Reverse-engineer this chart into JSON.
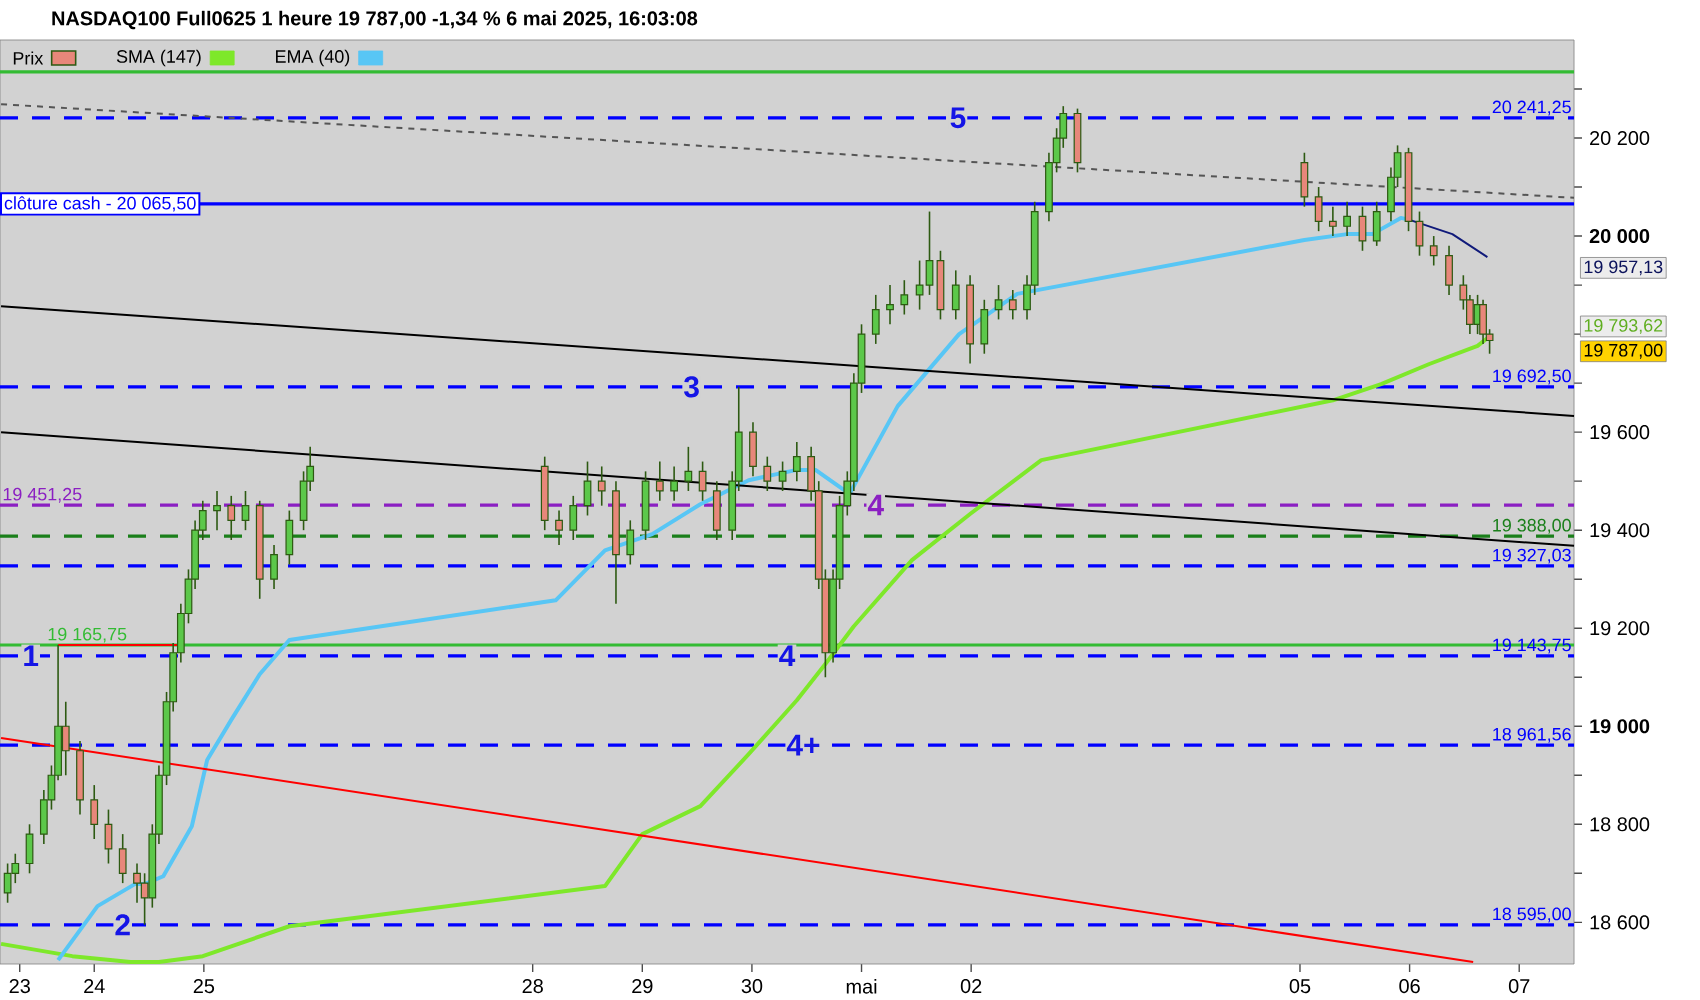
{
  "chart_data": {
    "type": "candlestick",
    "title": "NASDAQ100 Full0625 1 heure 19 787,00 -1,34 % 6 mai 2025, 16:03:08",
    "xlim": [
      "2025-04-23T03:22",
      "2025-05-07T12:00"
    ],
    "ylim": [
      18515,
      20400
    ],
    "xticks": [
      {
        "value": "2025-04-23T07:41",
        "label": "23"
      },
      {
        "value": "2025-04-24",
        "label": "24"
      },
      {
        "value": "2025-04-25",
        "label": "25"
      },
      {
        "value": "2025-04-28",
        "label": "28"
      },
      {
        "value": "2025-04-29",
        "label": "29"
      },
      {
        "value": "2025-04-30",
        "label": "30"
      },
      {
        "value": "2025-05-01",
        "label": "mai"
      },
      {
        "value": "2025-05-02",
        "label": "02"
      },
      {
        "value": "2025-05-05",
        "label": "05"
      },
      {
        "value": "2025-05-06",
        "label": "06"
      },
      {
        "value": "2025-05-07",
        "label": "07"
      }
    ],
    "yticks": [
      {
        "value": 18600,
        "label": "18 600"
      },
      {
        "value": 18700,
        "label": null
      },
      {
        "value": 18800,
        "label": "18 800"
      },
      {
        "value": 18900,
        "label": null
      },
      {
        "value": 19000,
        "label": "19 000"
      },
      {
        "value": 19100,
        "label": null
      },
      {
        "value": 19200,
        "label": "19 200"
      },
      {
        "value": 19300,
        "label": null
      },
      {
        "value": 19400,
        "label": "19 400"
      },
      {
        "value": 19500,
        "label": null
      },
      {
        "value": 19600,
        "label": "19 600"
      },
      {
        "value": 19700,
        "label": null
      },
      {
        "value": 19800,
        "label": null
      },
      {
        "value": 19900,
        "label": null
      },
      {
        "value": 20000,
        "label": "20 000"
      },
      {
        "value": 20100,
        "label": null
      },
      {
        "value": 20200,
        "label": "20 200"
      },
      {
        "value": 20300,
        "label": null
      }
    ],
    "legend": "top left",
    "grid": false,
    "marker": "none",
    "series": [
      {
        "name": "Prix",
        "color": "#2d5a12",
        "x": [
          "2025-04-23T05:02",
          "2025-04-23T06:43",
          "2025-04-23T09:50",
          "2025-04-23T12:58",
          "2025-04-23T14:38",
          "2025-04-23T16:05",
          "2025-04-23T17:46",
          "2025-04-23T20:53",
          "2025-04-24T00:00",
          "2025-04-24T03:07",
          "2025-04-24T06:14",
          "2025-04-24T09:22",
          "2025-04-24T11:02",
          "2025-04-24T12:43",
          "2025-04-24T14:10",
          "2025-04-24T15:50",
          "2025-04-24T17:17",
          "2025-04-24T18:58",
          "2025-04-24T20:38",
          "2025-04-24T22:05",
          "2025-04-24T23:46",
          "2025-04-25T02:53",
          "2025-04-25T06:00",
          "2025-04-25T09:07",
          "2025-04-25T12:14",
          "2025-04-25T15:22",
          "2025-04-25T18:43",
          "2025-04-25T21:50",
          "2025-04-25T23:17",
          "2025-04-28T02:38",
          "2025-04-28T05:46",
          "2025-04-28T08:53",
          "2025-04-28T12:00",
          "2025-04-28T15:07",
          "2025-04-28T18:14",
          "2025-04-28T21:22",
          "2025-04-29T00:43",
          "2025-04-29T03:50",
          "2025-04-29T06:58",
          "2025-04-29T10:05",
          "2025-04-29T13:12",
          "2025-04-29T16:19",
          "2025-04-29T19:41",
          "2025-04-29T21:07",
          "2025-04-30T00:14",
          "2025-04-30T03:22",
          "2025-04-30T06:43",
          "2025-04-30T09:50",
          "2025-04-30T12:58",
          "2025-04-30T14:38",
          "2025-04-30T16:05",
          "2025-04-30T17:46",
          "2025-04-30T19:12",
          "2025-04-30T20:53",
          "2025-04-30T22:19",
          "2025-05-01T00:00",
          "2025-05-01T03:07",
          "2025-05-01T06:14",
          "2025-05-01T09:22",
          "2025-05-01T12:43",
          "2025-05-01T14:53",
          "2025-05-01T17:17",
          "2025-05-01T20:38",
          "2025-05-01T23:46",
          "2025-05-02T02:53",
          "2025-05-02T06:00",
          "2025-05-02T09:07",
          "2025-05-02T12:14",
          "2025-05-02T13:55",
          "2025-05-02T17:02",
          "2025-05-02T18:43",
          "2025-05-02T20:10",
          "2025-05-02T23:17",
          "2025-05-05T00:58",
          "2025-05-05T04:05",
          "2025-05-05T07:12",
          "2025-05-05T10:19",
          "2025-05-05T13:41",
          "2025-05-05T16:48",
          "2025-05-05T19:55",
          "2025-05-05T21:22",
          "2025-05-05T23:46",
          "2025-05-06T02:10",
          "2025-05-06T05:17",
          "2025-05-06T08:38",
          "2025-05-06T11:46",
          "2025-05-06T13:12",
          "2025-05-06T14:53",
          "2025-05-06T16:05",
          "2025-05-06T17:31"
        ],
        "ohlc": [
          [
            18660,
            18720,
            18640,
            18700
          ],
          [
            18700,
            18740,
            18680,
            18720
          ],
          [
            18720,
            18800,
            18700,
            18780
          ],
          [
            18780,
            18870,
            18760,
            18850
          ],
          [
            18850,
            18920,
            18830,
            18900
          ],
          [
            18900,
            19165.75,
            18890,
            19000
          ],
          [
            19000,
            19050,
            18900,
            18950
          ],
          [
            18950,
            18970,
            18820,
            18850
          ],
          [
            18850,
            18880,
            18770,
            18800
          ],
          [
            18800,
            18830,
            18720,
            18750
          ],
          [
            18750,
            18780,
            18680,
            18700
          ],
          [
            18700,
            18720,
            18640,
            18680
          ],
          [
            18680,
            18700,
            18595,
            18650
          ],
          [
            18650,
            18800,
            18630,
            18780
          ],
          [
            18780,
            18920,
            18760,
            18900
          ],
          [
            18900,
            19070,
            18880,
            19050
          ],
          [
            19050,
            19170,
            19030,
            19150
          ],
          [
            19150,
            19250,
            19130,
            19230
          ],
          [
            19230,
            19320,
            19210,
            19300
          ],
          [
            19300,
            19420,
            19280,
            19400
          ],
          [
            19400,
            19460,
            19380,
            19440
          ],
          [
            19440,
            19480,
            19400,
            19450
          ],
          [
            19450,
            19470,
            19380,
            19420
          ],
          [
            19420,
            19480,
            19400,
            19450
          ],
          [
            19450,
            19460,
            19260,
            19300
          ],
          [
            19300,
            19370,
            19280,
            19350
          ],
          [
            19350,
            19440,
            19330,
            19420
          ],
          [
            19420,
            19520,
            19400,
            19500
          ],
          [
            19500,
            19570,
            19480,
            19530
          ],
          [
            19530,
            19550,
            19400,
            19420
          ],
          [
            19420,
            19440,
            19370,
            19400
          ],
          [
            19400,
            19470,
            19380,
            19450
          ],
          [
            19450,
            19540,
            19430,
            19500
          ],
          [
            19500,
            19530,
            19450,
            19480
          ],
          [
            19480,
            19500,
            19250,
            19350
          ],
          [
            19350,
            19420,
            19330,
            19400
          ],
          [
            19400,
            19520,
            19380,
            19500
          ],
          [
            19500,
            19540,
            19460,
            19480
          ],
          [
            19480,
            19530,
            19460,
            19500
          ],
          [
            19500,
            19570,
            19480,
            19520
          ],
          [
            19520,
            19540,
            19460,
            19480
          ],
          [
            19480,
            19500,
            19380,
            19400
          ],
          [
            19400,
            19520,
            19380,
            19500
          ],
          [
            19500,
            19692.5,
            19480,
            19600
          ],
          [
            19600,
            19620,
            19510,
            19530
          ],
          [
            19530,
            19550,
            19480,
            19500
          ],
          [
            19500,
            19540,
            19480,
            19520
          ],
          [
            19520,
            19580,
            19500,
            19550
          ],
          [
            19550,
            19570,
            19460,
            19480
          ],
          [
            19480,
            19500,
            19280,
            19300
          ],
          [
            19300,
            19320,
            19100,
            19150
          ],
          [
            19150,
            19320,
            19130,
            19300
          ],
          [
            19300,
            19470,
            19280,
            19450
          ],
          [
            19450,
            19520,
            19430,
            19500
          ],
          [
            19500,
            19720,
            19480,
            19700
          ],
          [
            19700,
            19820,
            19680,
            19800
          ],
          [
            19800,
            19880,
            19780,
            19850
          ],
          [
            19850,
            19900,
            19820,
            19860
          ],
          [
            19860,
            19910,
            19840,
            19880
          ],
          [
            19880,
            19950,
            19850,
            19900
          ],
          [
            19900,
            20050,
            19880,
            19950
          ],
          [
            19950,
            19970,
            19830,
            19850
          ],
          [
            19850,
            19930,
            19830,
            19900
          ],
          [
            19900,
            19920,
            19740,
            19780
          ],
          [
            19780,
            19870,
            19760,
            19850
          ],
          [
            19850,
            19900,
            19830,
            19870
          ],
          [
            19870,
            19890,
            19830,
            19850
          ],
          [
            19850,
            19920,
            19830,
            19900
          ],
          [
            19900,
            20070,
            19880,
            20050
          ],
          [
            20050,
            20170,
            20030,
            20150
          ],
          [
            20150,
            20220,
            20130,
            20200
          ],
          [
            20200,
            20265,
            20180,
            20250
          ],
          [
            20250,
            20260,
            20130,
            20150
          ],
          [
            20150,
            20170,
            20060,
            20080
          ],
          [
            20080,
            20100,
            20010,
            20030
          ],
          [
            20030,
            20060,
            20000,
            20020
          ],
          [
            20020,
            20070,
            20000,
            20040
          ],
          [
            20040,
            20060,
            19970,
            19990
          ],
          [
            19990,
            20070,
            19980,
            20050
          ],
          [
            20050,
            20140,
            20030,
            20120
          ],
          [
            20120,
            20185,
            20100,
            20170
          ],
          [
            20170,
            20180,
            20010,
            20030
          ],
          [
            20030,
            20050,
            19960,
            19980
          ],
          [
            19980,
            20000,
            19940,
            19960
          ],
          [
            19960,
            19980,
            19880,
            19900
          ],
          [
            19900,
            19920,
            19850,
            19870
          ],
          [
            19870,
            19880,
            19800,
            19820
          ],
          [
            19820,
            19880,
            19800,
            19860
          ],
          [
            19860,
            19870,
            19780,
            19800
          ],
          [
            19800,
            19810,
            19760,
            19787
          ]
        ]
      },
      {
        "type": "line",
        "name": "SMA (147)",
        "color": "#7ee82a",
        "x": [
          "2025-04-23T03:36",
          "2025-04-23T19:12",
          "2025-04-24T07:55",
          "2025-04-24T14:10",
          "2025-04-24T23:46",
          "2025-04-25T18:43",
          "2025-04-28T15:50",
          "2025-04-29T00:00",
          "2025-04-29T12:43",
          "2025-04-29T23:17",
          "2025-04-30T09:50",
          "2025-04-30T16:05",
          "2025-04-30T22:19",
          "2025-05-01T11:02",
          "2025-05-01T23:46",
          "2025-05-02T15:22",
          "2025-05-05T07:12",
          "2025-05-05T17:46",
          "2025-05-06T04:19",
          "2025-05-06T14:53",
          "2025-05-06T17:17"
        ],
        "values": [
          18556,
          18531,
          18519,
          18519,
          18531,
          18592,
          18674,
          18780,
          18837,
          18943,
          19053,
          19127,
          19204,
          19339,
          19433,
          19543,
          19665,
          19698,
          19739,
          19776,
          19793.62
        ]
      },
      {
        "type": "line",
        "name": "EMA (40)",
        "color": "#58c6f5",
        "x": [
          "2025-04-23T16:05",
          "2025-04-24T00:43",
          "2025-04-24T08:53",
          "2025-04-24T11:02",
          "2025-04-24T15:07",
          "2025-04-24T21:22",
          "2025-04-25T00:43",
          "2025-04-25T06:00",
          "2025-04-25T12:14",
          "2025-04-25T18:43",
          "2025-04-28T05:02",
          "2025-04-28T15:50",
          "2025-04-29T02:10",
          "2025-04-29T12:43",
          "2025-04-29T23:17",
          "2025-04-30T09:50",
          "2025-04-30T13:55",
          "2025-04-30T21:22",
          "2025-05-01T07:55",
          "2025-05-01T21:22",
          "2025-05-02T10:05",
          "2025-05-05T00:58",
          "2025-05-05T10:19",
          "2025-05-05T15:50",
          "2025-05-05T22:05",
          "2025-05-06T00:00"
        ],
        "values": [
          18523,
          18633,
          18678,
          18678,
          18694,
          18796,
          18931,
          19013,
          19106,
          19176,
          19257,
          19359,
          19392,
          19453,
          19502,
          19523,
          19523,
          19474,
          19653,
          19800,
          19882,
          19992,
          20004,
          20004,
          20037,
          20033
        ]
      },
      {
        "type": "line",
        "color": "#101a7a",
        "x": [
          "2025-05-06T00:00",
          "2025-05-06T09:22",
          "2025-05-06T17:02"
        ],
        "values": [
          20033,
          20004,
          19957.13
        ]
      },
      {
        "type": "line",
        "color": "#000000",
        "x": [
          "2025-04-23T03:36",
          "2025-05-07T12:00"
        ],
        "values": [
          19857,
          19633
        ]
      },
      {
        "type": "line",
        "color": "#000000",
        "x": [
          "2025-04-23T03:36",
          "2025-05-07T12:00"
        ],
        "values": [
          19600,
          19368
        ]
      },
      {
        "type": "line",
        "color": "#555555",
        "line_style": "dashed",
        "x": [
          "2025-04-23T03:36",
          "2025-05-07T12:00"
        ],
        "values": [
          20269,
          20078
        ]
      },
      {
        "type": "line",
        "color": "#ff0000",
        "x": [
          "2025-04-23T03:36",
          "2025-05-06T13:55"
        ],
        "values": [
          18976,
          18519
        ]
      },
      {
        "type": "line",
        "color": "#ff0000",
        "x": [
          "2025-04-23T16:05",
          "2025-04-24T18:58"
        ],
        "values": [
          19166,
          19166
        ]
      }
    ],
    "ref_lines": [
      {
        "axis": "y",
        "value": 20241.25,
        "label": "20 241,25",
        "color": "#0000ff",
        "line_style": "dashed"
      },
      {
        "axis": "y",
        "value": 20065.5,
        "label": "clôture cash -  20 065,50",
        "color": "#0000ff",
        "line_style": "solid"
      },
      {
        "axis": "y",
        "value": 19692.5,
        "label": "19 692,50",
        "color": "#0000ff",
        "line_style": "dashed"
      },
      {
        "axis": "y",
        "value": 19451.25,
        "label": "19 451,25",
        "color": "#8b1fc2",
        "line_style": "dashed"
      },
      {
        "axis": "y",
        "value": 19388,
        "label": "19 388,00",
        "color": "#1a7f1a",
        "line_style": "dashed"
      },
      {
        "axis": "y",
        "value": 19327.03,
        "label": "19 327,03",
        "color": "#0000ff",
        "line_style": "dashed"
      },
      {
        "axis": "y",
        "value": 19165.75,
        "label": "19 165,75",
        "color": "#33bb33",
        "line_style": "solid"
      },
      {
        "axis": "y",
        "value": 19143.75,
        "label": "19 143,75",
        "color": "#0000ff",
        "line_style": "dashed"
      },
      {
        "axis": "y",
        "value": 18961.56,
        "label": "18 961,56",
        "color": "#0000ff",
        "line_style": "dashed"
      },
      {
        "axis": "y",
        "value": 18595,
        "label": "18 595,00",
        "color": "#0000ff",
        "line_style": "dashed"
      },
      {
        "axis": "y",
        "value": 20335,
        "label": null,
        "color": "#33bb33",
        "line_style": "solid"
      }
    ],
    "annotations": [
      {
        "text": "1",
        "x": "2025-04-23T10:05",
        "y": 19143.75
      },
      {
        "text": "2",
        "x": "2025-04-24T06:14",
        "y": 18595
      },
      {
        "text": "3",
        "x": "2025-04-29T10:48",
        "y": 19692.5
      },
      {
        "text": "4",
        "x": "2025-04-30T07:41",
        "y": 19143.75
      },
      {
        "text": "4+",
        "x": "2025-04-30T11:17",
        "y": 18961.56
      },
      {
        "text": "4",
        "x": "2025-05-01T03:07",
        "y": 19451.25
      },
      {
        "text": "5",
        "x": "2025-05-01T21:07",
        "y": 20241.25
      },
      "19 787,00",
      "19 793,62",
      "19 957,13"
    ]
  }
}
